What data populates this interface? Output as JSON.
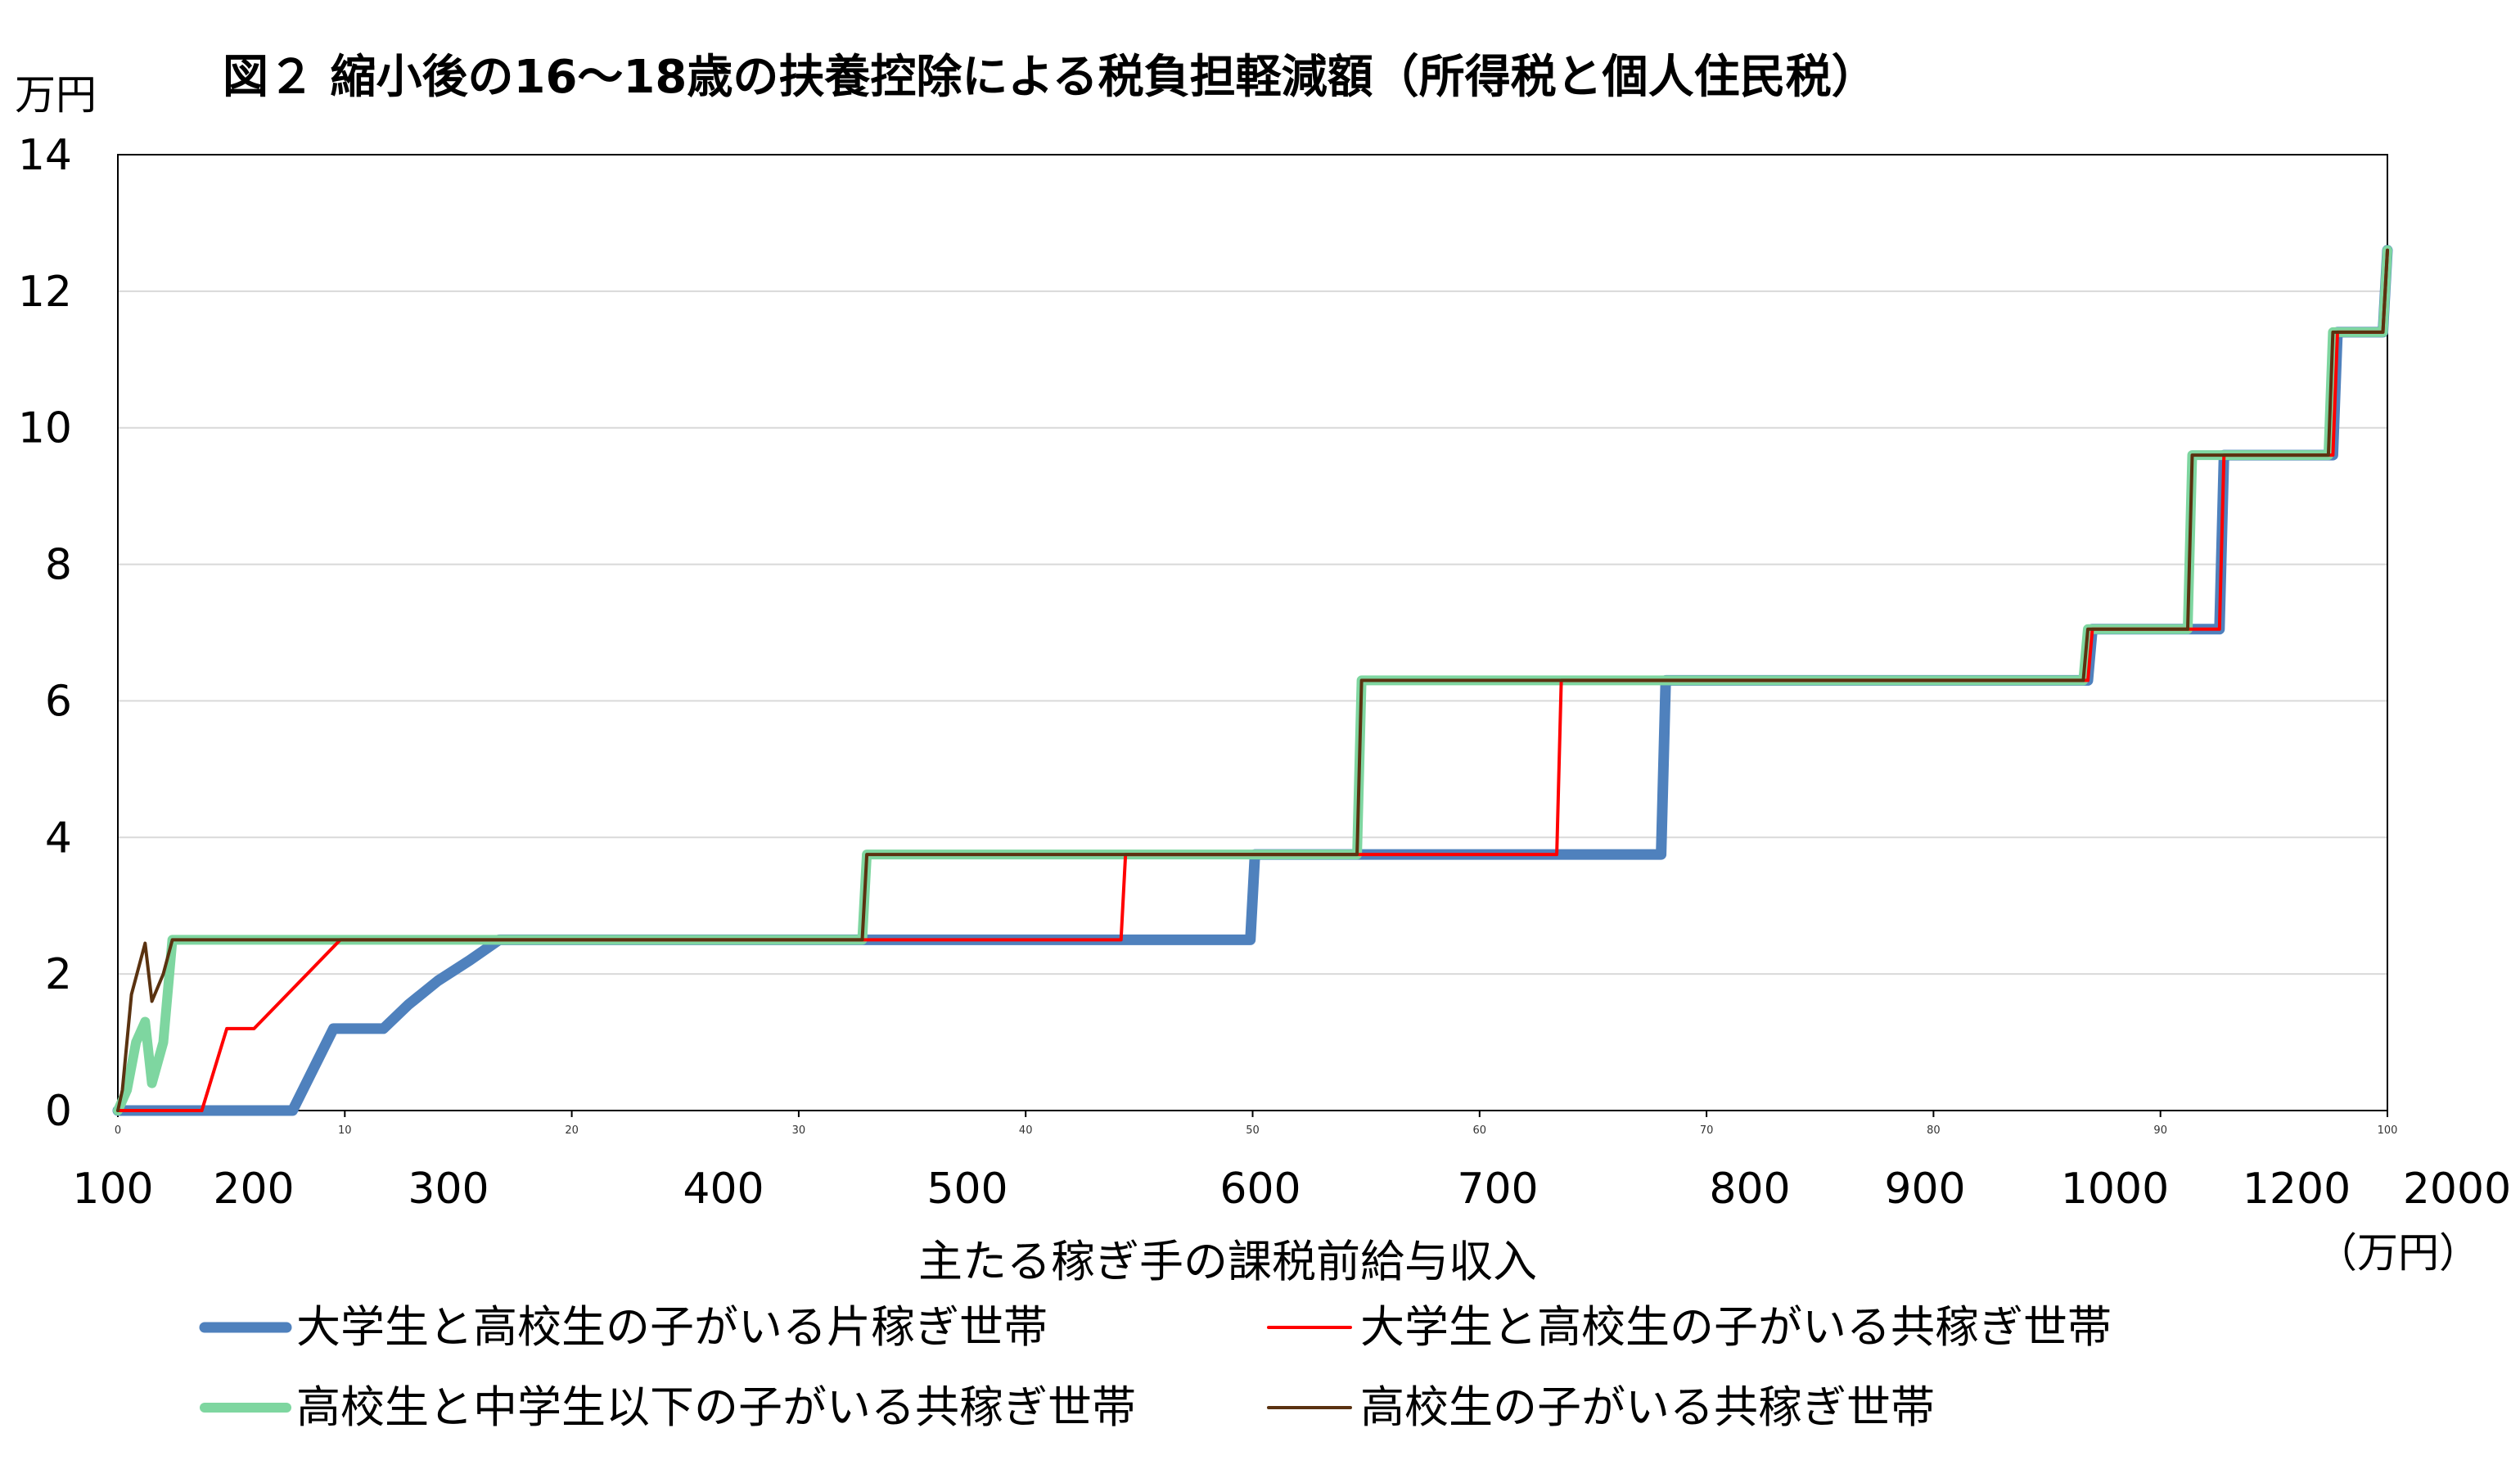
{
  "chart_data": {
    "type": "line",
    "title": "図２ 縮小後の16～18歳の扶養控除による税負担軽減額（所得税と個人住民税）",
    "y_unit_label": "万円",
    "xlabel": "主たる稼ぎ手の課税前給与収入",
    "x_unit_label": "（万円）",
    "ylim": [
      0,
      14
    ],
    "y_ticks": [
      "0",
      "2",
      "4",
      "6",
      "8",
      "10",
      "12",
      "14"
    ],
    "x_tick_labels": [
      "100",
      "200",
      "300",
      "400",
      "500",
      "600",
      "700",
      "800",
      "900",
      "1000",
      "1200",
      "2000"
    ],
    "x_minor_tick_labels": [
      "0",
      "10",
      "20",
      "30",
      "40",
      "50",
      "60",
      "70",
      "80",
      "90",
      "100"
    ],
    "x_axis_index_range": [
      0,
      100
    ],
    "grid": true,
    "legend_position": "bottom",
    "colors": {
      "single_income_univ_hs": "#4f81bd",
      "dual_income_univ_hs": "#ff0000",
      "dual_income_hs_jhs": "#7ed6a0",
      "dual_income_hs": "#5a3210",
      "grid": "#d9d9d9"
    },
    "series": [
      {
        "name": "大学生と高校生の子がいる片稼ぎ世帯",
        "color": "#4f81bd",
        "x": [
          0,
          7.7,
          9.5,
          11.7,
          12.8,
          14.1,
          15.5,
          16.8,
          32.8,
          49.9,
          50.1,
          68.0,
          68.2,
          86.8,
          87.0,
          92.6,
          92.8,
          97.6,
          97.8,
          99.8,
          100
        ],
        "y": [
          0,
          0,
          1.2,
          1.2,
          1.55,
          1.9,
          2.2,
          2.5,
          2.5,
          2.5,
          3.75,
          3.75,
          6.3,
          6.3,
          7.05,
          7.05,
          9.6,
          9.6,
          11.4,
          11.4,
          12.6
        ]
      },
      {
        "name": "大学生と高校生の子がいる共稼ぎ世帯",
        "color": "#ff0000",
        "x": [
          0,
          3.7,
          4.8,
          6.0,
          9.8,
          32.8,
          44.2,
          44.4,
          63.4,
          63.6,
          86.8,
          87.0,
          92.6,
          92.8,
          97.6,
          97.8,
          99.8,
          100
        ],
        "y": [
          0,
          0,
          1.2,
          1.2,
          2.5,
          2.5,
          2.5,
          3.75,
          3.75,
          6.3,
          6.3,
          7.05,
          7.05,
          9.6,
          9.6,
          11.4,
          11.4,
          12.6
        ]
      },
      {
        "name": "高校生と中学生以下の子がいる共稼ぎ世帯",
        "color": "#7ed6a0",
        "x": [
          0,
          0.4,
          0.8,
          1.2,
          1.5,
          2.0,
          2.4,
          32.8,
          33.0,
          54.6,
          54.8,
          86.6,
          86.8,
          91.2,
          91.4,
          97.4,
          97.6,
          99.8,
          100
        ],
        "y": [
          0,
          0.3,
          1.0,
          1.3,
          0.4,
          1.0,
          2.5,
          2.5,
          3.75,
          3.75,
          6.3,
          6.3,
          7.05,
          7.05,
          9.6,
          9.6,
          11.4,
          11.4,
          12.6
        ]
      },
      {
        "name": "高校生の子がいる共稼ぎ世帯",
        "color": "#5a3210",
        "x": [
          0,
          0.2,
          0.6,
          1.2,
          1.5,
          2.0,
          2.4,
          32.8,
          33.0,
          54.6,
          54.8,
          86.6,
          86.8,
          91.2,
          91.4,
          97.4,
          97.6,
          99.8,
          100
        ],
        "y": [
          0,
          0.3,
          1.7,
          2.45,
          1.6,
          2.0,
          2.5,
          2.5,
          3.75,
          3.75,
          6.3,
          6.3,
          7.05,
          7.05,
          9.6,
          9.6,
          11.4,
          11.4,
          12.6
        ]
      }
    ]
  }
}
